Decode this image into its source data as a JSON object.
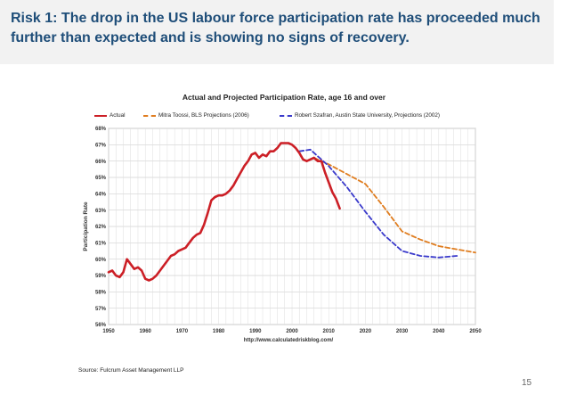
{
  "slide": {
    "title": "Risk 1: The drop in the US labour force participation rate has proceeded much further than expected and is showing no signs of recovery.",
    "source": "Source: Fulcrum Asset Management LLP",
    "page_number": "15"
  },
  "colors": {
    "title": "#1f4e79",
    "actual": "#cc1f26",
    "toossi": "#e07d1f",
    "szafran": "#3a3acb"
  },
  "chart_data": {
    "type": "line",
    "title": "Actual and Projected Participation Rate, age 16 and over",
    "xlabel": "http://www.calculatedriskblog.com/",
    "ylabel": "Participation Rate",
    "xlim": [
      1950,
      2050
    ],
    "ylim": [
      56,
      68
    ],
    "x_ticks": [
      "1950",
      "1960",
      "1970",
      "1980",
      "1990",
      "2000",
      "2010",
      "2020",
      "2030",
      "2040",
      "2050"
    ],
    "y_ticks": [
      "56%",
      "57%",
      "58%",
      "59%",
      "60%",
      "61%",
      "62%",
      "63%",
      "64%",
      "65%",
      "66%",
      "67%",
      "68%"
    ],
    "grid": true,
    "legend_position": "top",
    "series": [
      {
        "name": "Actual",
        "style": "solid",
        "x": [
          1950,
          1951,
          1952,
          1953,
          1954,
          1955,
          1956,
          1957,
          1958,
          1959,
          1960,
          1961,
          1962,
          1963,
          1964,
          1965,
          1966,
          1967,
          1968,
          1969,
          1970,
          1971,
          1972,
          1973,
          1974,
          1975,
          1976,
          1977,
          1978,
          1979,
          1980,
          1981,
          1982,
          1983,
          1984,
          1985,
          1986,
          1987,
          1988,
          1989,
          1990,
          1991,
          1992,
          1993,
          1994,
          1995,
          1996,
          1997,
          1998,
          1999,
          2000,
          2001,
          2002,
          2003,
          2004,
          2005,
          2006,
          2007,
          2008,
          2009,
          2010,
          2011,
          2012,
          2013
        ],
        "y": [
          59.2,
          59.3,
          59.0,
          58.9,
          59.2,
          60.0,
          59.7,
          59.4,
          59.5,
          59.3,
          58.8,
          58.7,
          58.8,
          59.0,
          59.3,
          59.6,
          59.9,
          60.2,
          60.3,
          60.5,
          60.6,
          60.7,
          61.0,
          61.3,
          61.5,
          61.6,
          62.1,
          62.8,
          63.6,
          63.8,
          63.9,
          63.9,
          64.0,
          64.2,
          64.5,
          64.9,
          65.3,
          65.7,
          66.0,
          66.4,
          66.5,
          66.2,
          66.4,
          66.3,
          66.6,
          66.6,
          66.8,
          67.1,
          67.1,
          67.1,
          67.0,
          66.8,
          66.5,
          66.1,
          66.0,
          66.1,
          66.2,
          66.0,
          66.0,
          65.3,
          64.7,
          64.1,
          63.7,
          63.1
        ]
      },
      {
        "name": "Mitra Toossi, BLS Projections (2006)",
        "style": "dashed",
        "x": [
          2006,
          2010,
          2015,
          2020,
          2025,
          2030,
          2035,
          2040,
          2045,
          2050
        ],
        "y": [
          66.2,
          65.8,
          65.2,
          64.6,
          63.2,
          61.7,
          61.2,
          60.8,
          60.6,
          60.4
        ]
      },
      {
        "name": "Robert Szafran, Austin State University, Projections (2002)",
        "style": "dashed",
        "x": [
          2002,
          2005,
          2010,
          2015,
          2020,
          2025,
          2030,
          2035,
          2040,
          2045
        ],
        "y": [
          66.6,
          66.7,
          65.7,
          64.4,
          62.9,
          61.5,
          60.5,
          60.2,
          60.1,
          60.2
        ]
      }
    ]
  }
}
